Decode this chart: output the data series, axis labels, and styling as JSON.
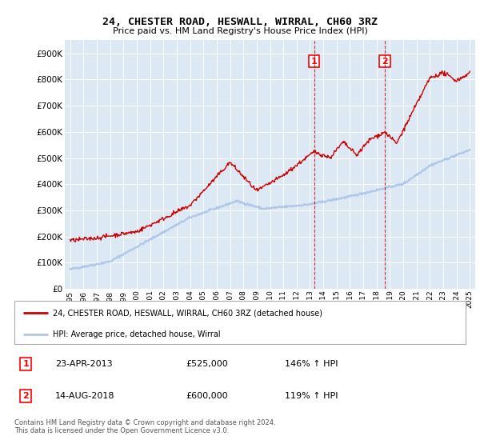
{
  "title": "24, CHESTER ROAD, HESWALL, WIRRAL, CH60 3RZ",
  "subtitle": "Price paid vs. HM Land Registry's House Price Index (HPI)",
  "legend_line1": "24, CHESTER ROAD, HESWALL, WIRRAL, CH60 3RZ (detached house)",
  "legend_line2": "HPI: Average price, detached house, Wirral",
  "annotation1_label": "1",
  "annotation1_date": "23-APR-2013",
  "annotation1_price": "£525,000",
  "annotation1_hpi": "146% ↑ HPI",
  "annotation2_label": "2",
  "annotation2_date": "14-AUG-2018",
  "annotation2_price": "£600,000",
  "annotation2_hpi": "119% ↑ HPI",
  "footer": "Contains HM Land Registry data © Crown copyright and database right 2024.\nThis data is licensed under the Open Government Licence v3.0.",
  "hpi_color": "#aec6e8",
  "sale_color": "#cc0000",
  "background_color": "#dce9f5",
  "plot_bg": "#ffffff",
  "ylim": [
    0,
    950000
  ],
  "yticks": [
    0,
    100000,
    200000,
    300000,
    400000,
    500000,
    600000,
    700000,
    800000,
    900000
  ],
  "sale1_x": 2013.31,
  "sale1_y": 525000,
  "sale2_x": 2018.62,
  "sale2_y": 600000,
  "xlim_left": 1994.6,
  "xlim_right": 2025.4
}
